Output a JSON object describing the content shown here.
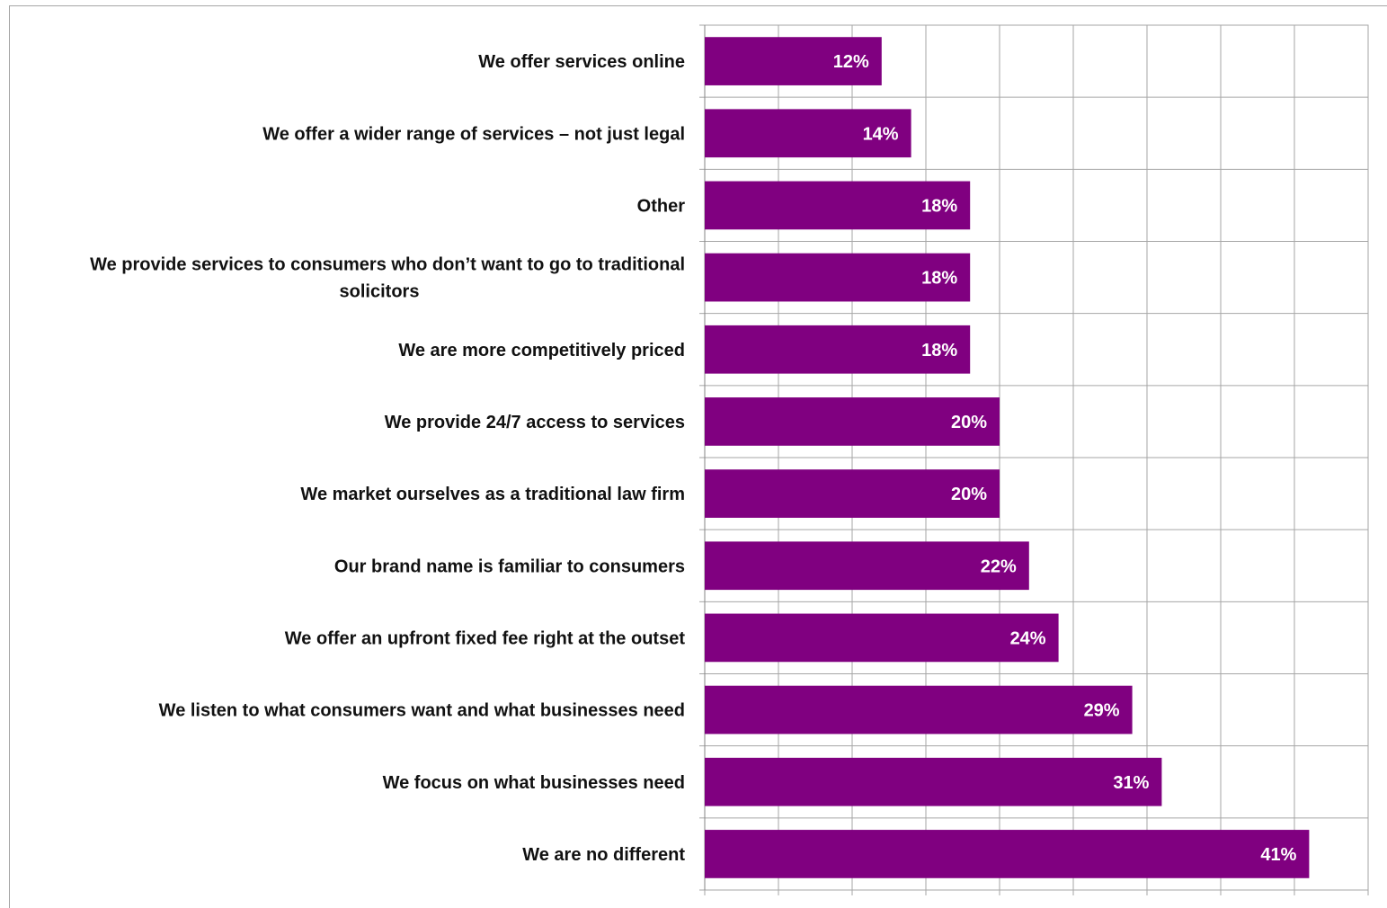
{
  "chart_data": {
    "type": "bar",
    "orientation": "horizontal",
    "categories": [
      "We offer services online",
      "We offer a wider range of services – not just legal",
      "Other",
      "We provide services to consumers who don’t want to go to traditional solicitors",
      "We are more competitively priced",
      "We provide 24/7 access to services",
      "We market ourselves as a traditional law firm",
      "Our brand name is familiar to consumers",
      "We offer an upfront fixed fee right at the outset",
      "We listen to what consumers want and what businesses need",
      "We focus on what businesses need",
      "We are no different"
    ],
    "values": [
      12,
      14,
      18,
      18,
      18,
      20,
      20,
      22,
      24,
      29,
      31,
      41
    ],
    "data_labels": [
      "12%",
      "14%",
      "18%",
      "18%",
      "18%",
      "20%",
      "20%",
      "22%",
      "24%",
      "29%",
      "31%",
      "41%"
    ],
    "xlim": [
      0,
      45
    ],
    "grid": true,
    "bar_color": "#800080",
    "gridline_color": "#a6a6a6",
    "title": "",
    "xlabel": "",
    "ylabel": ""
  }
}
